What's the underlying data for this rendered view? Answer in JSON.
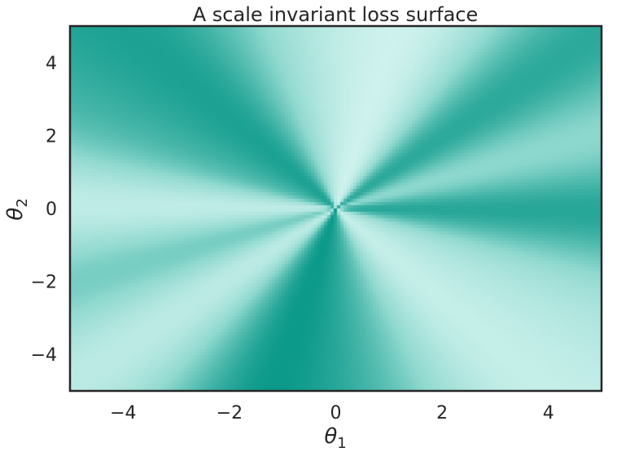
{
  "chart_data": {
    "type": "heatmap",
    "title": "A scale invariant loss surface",
    "xlabel": {
      "symbol": "θ",
      "subscript": "1"
    },
    "ylabel": {
      "symbol": "θ",
      "subscript": "2"
    },
    "xlim": [
      -5,
      5
    ],
    "ylim": [
      -5,
      5
    ],
    "xticks": [
      -4,
      -2,
      0,
      2,
      4
    ],
    "yticks": [
      -4,
      -2,
      0,
      2,
      4
    ],
    "xtick_labels": [
      "−4",
      "−2",
      "0",
      "2",
      "4"
    ],
    "ytick_labels": [
      "−4",
      "−2",
      "0",
      "2",
      "4"
    ],
    "grid": false,
    "colormap": {
      "low": "#e6fbf8",
      "high": "#009484"
    },
    "surface": "radial pattern depending only on the angle around the origin"
  }
}
